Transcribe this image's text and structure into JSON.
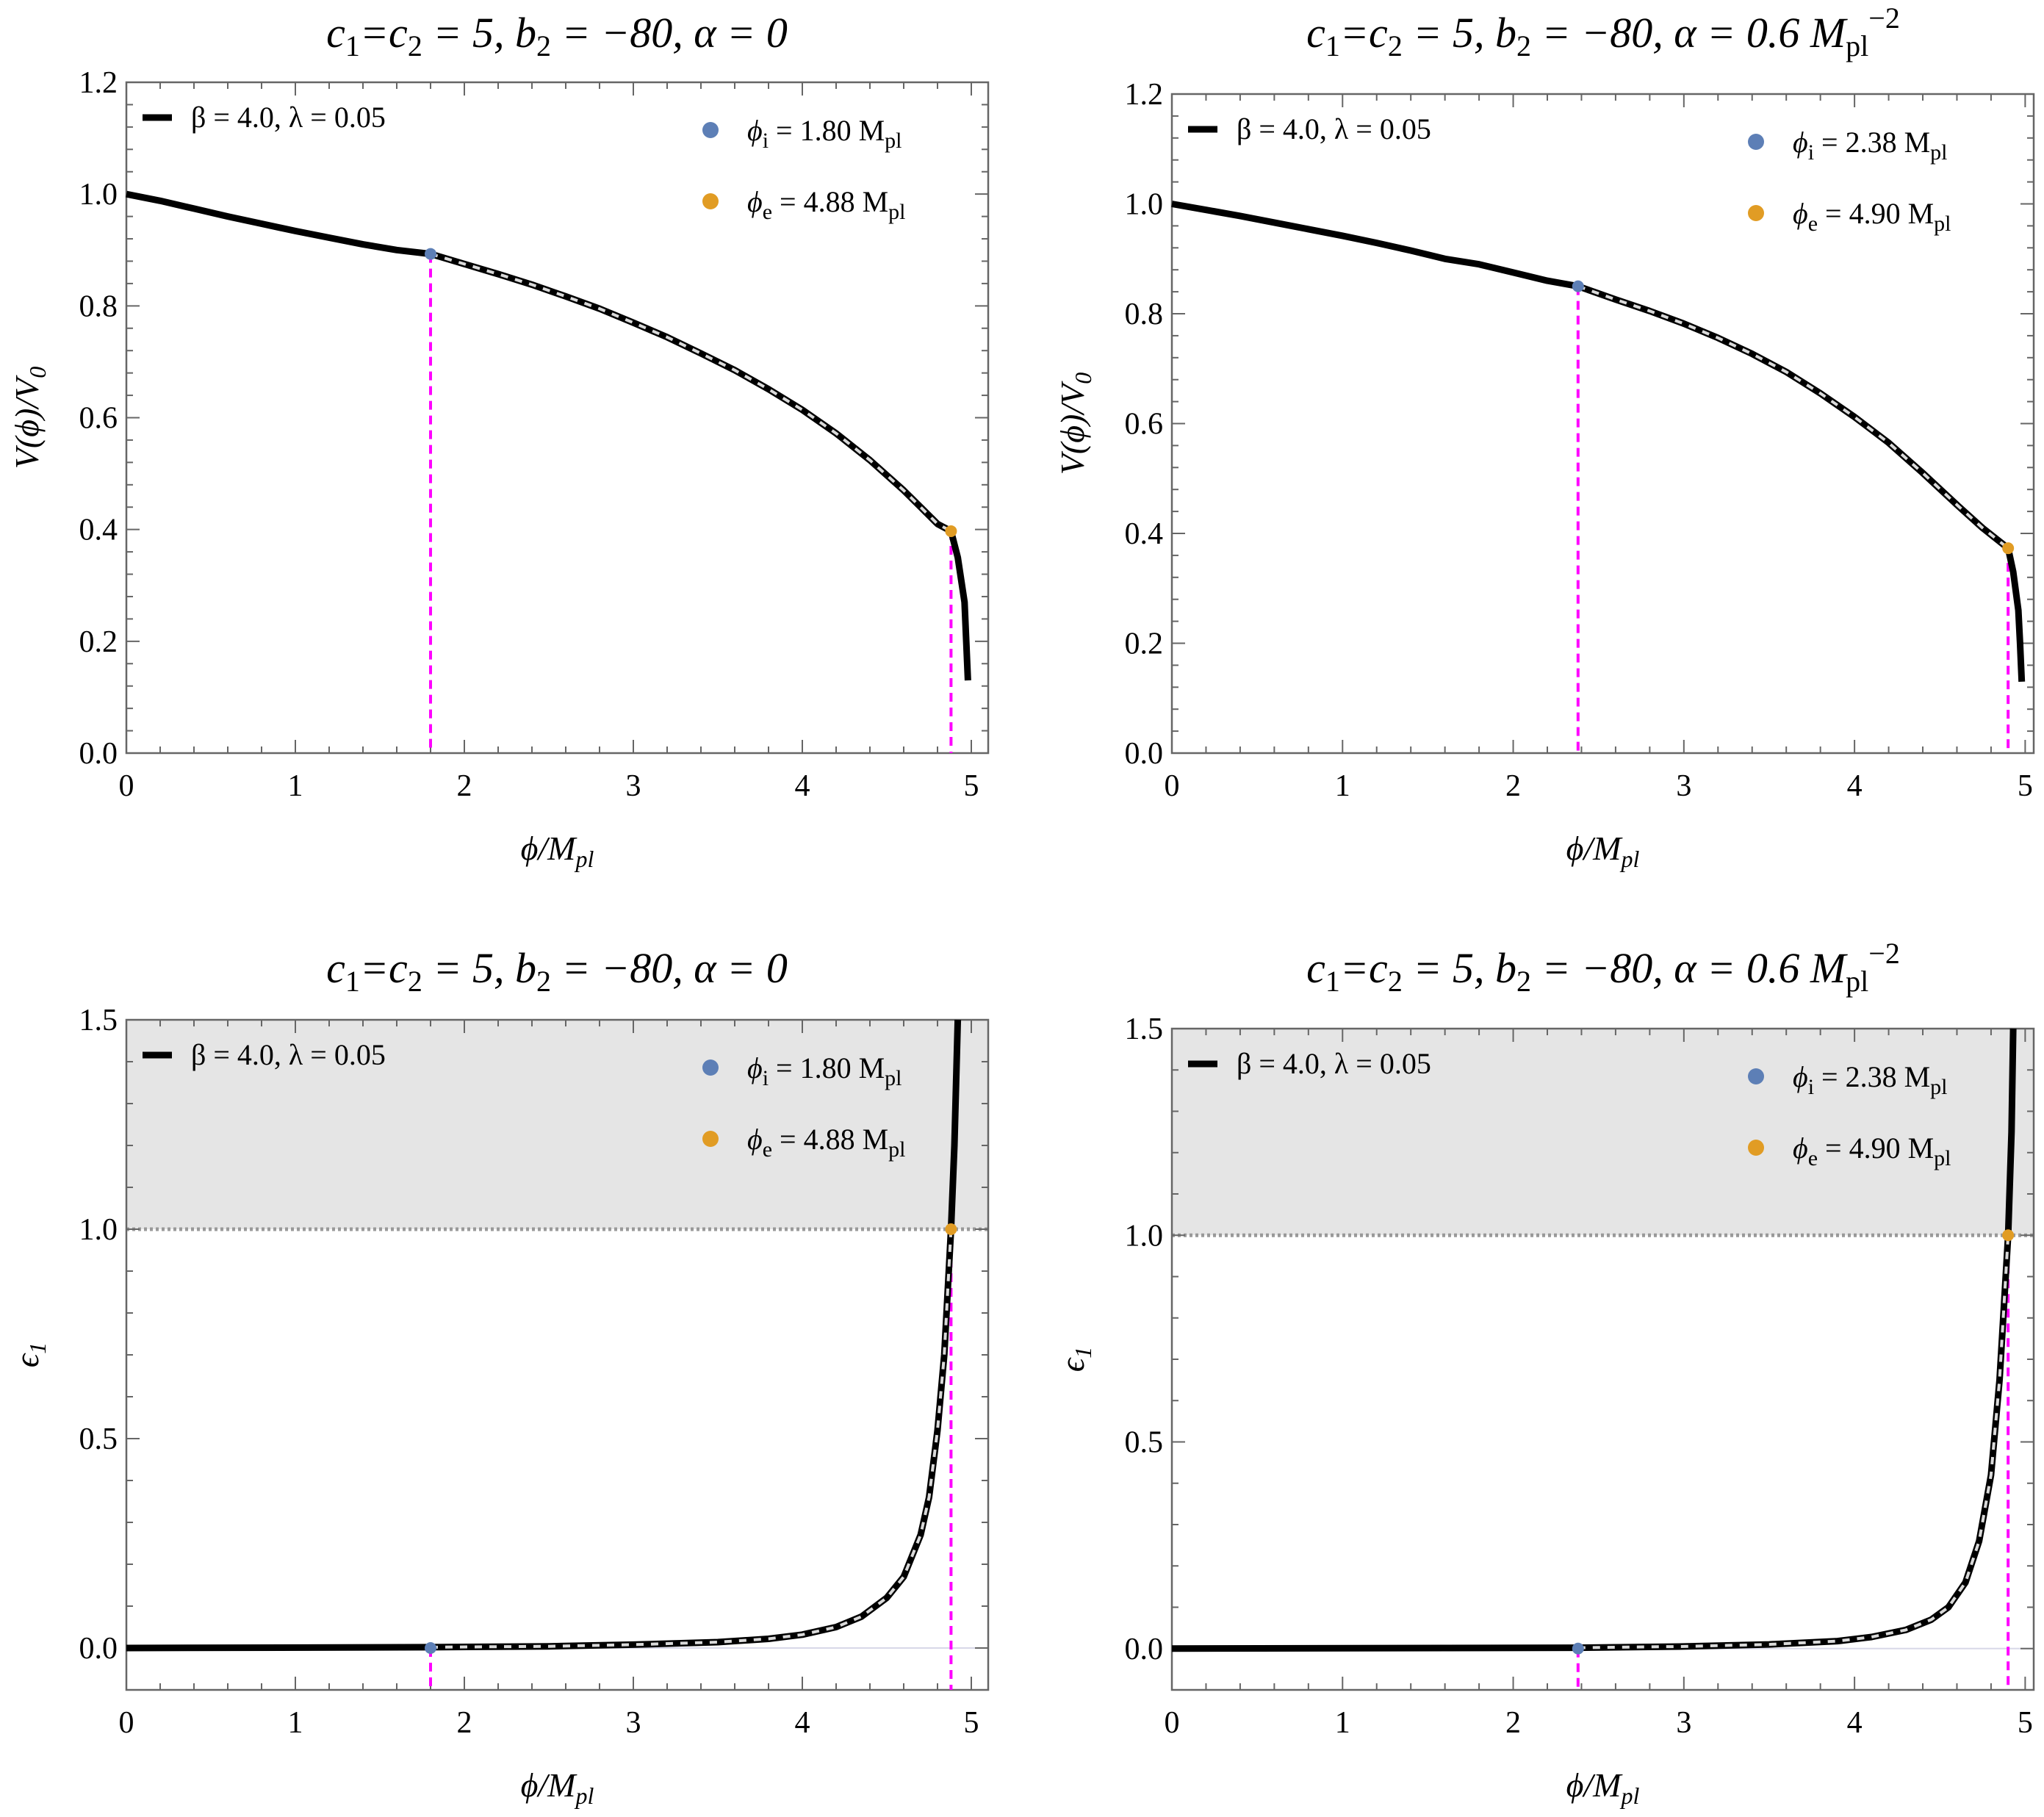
{
  "colors": {
    "curve": "#000000",
    "curve_inner": "#d9d9d9",
    "phi_i_marker": "#5d7fb6",
    "phi_e_marker": "#e19c24",
    "guide_line": "#ff00ff",
    "shade": "#e5e5e5",
    "threshold_line": "#999999",
    "frame": "#666666"
  },
  "chart_data": [
    {
      "type": "line",
      "title": {
        "t1": "c",
        "s1": "1",
        "t2": "=c",
        "s2": "2",
        "t3": " = 5, b",
        "s3": "2",
        "t4": " = −80, α = 0",
        "tail": "",
        "sup": ""
      },
      "xlabel": "ϕ/M",
      "xlabel_sub": "pl",
      "ylabel": "V(ϕ)/V",
      "ylabel_sub": "0",
      "xlim": [
        0,
        5.1
      ],
      "ylim": [
        0,
        1.2
      ],
      "xticks": [
        0,
        1,
        2,
        3,
        4,
        5
      ],
      "yticks": [
        0.0,
        0.2,
        0.4,
        0.6,
        0.8,
        1.0,
        1.2
      ],
      "ytick_labels": [
        "0.0",
        "0.2",
        "0.4",
        "0.6",
        "0.8",
        "1.0",
        "1.2"
      ],
      "legend": {
        "label": "β = 4.0, λ = 0.05"
      },
      "phi_i": {
        "x": 1.8,
        "y": 0.893,
        "sym": "ϕ",
        "sub": "i",
        "text": " = 1.80 M",
        "unit_sub": "pl"
      },
      "phi_e": {
        "x": 4.88,
        "y": 0.397,
        "sym": "ϕ",
        "sub": "e",
        "text": " = 4.88 M",
        "unit_sub": "pl"
      },
      "series": [
        {
          "name": "β = 4.0, λ = 0.05",
          "points": [
            [
              0,
              1.0
            ],
            [
              0.2,
              0.988
            ],
            [
              0.4,
              0.974
            ],
            [
              0.6,
              0.96
            ],
            [
              0.8,
              0.947
            ],
            [
              1.0,
              0.934
            ],
            [
              1.2,
              0.922
            ],
            [
              1.4,
              0.91
            ],
            [
              1.6,
              0.9
            ],
            [
              1.8,
              0.893
            ],
            [
              2.0,
              0.875
            ],
            [
              2.2,
              0.857
            ],
            [
              2.4,
              0.838
            ],
            [
              2.6,
              0.817
            ],
            [
              2.8,
              0.795
            ],
            [
              3.0,
              0.77
            ],
            [
              3.2,
              0.744
            ],
            [
              3.4,
              0.715
            ],
            [
              3.6,
              0.685
            ],
            [
              3.8,
              0.651
            ],
            [
              4.0,
              0.614
            ],
            [
              4.2,
              0.572
            ],
            [
              4.4,
              0.524
            ],
            [
              4.6,
              0.47
            ],
            [
              4.7,
              0.44
            ],
            [
              4.8,
              0.41
            ],
            [
              4.88,
              0.397
            ],
            [
              4.92,
              0.35
            ],
            [
              4.96,
              0.27
            ],
            [
              4.97,
              0.2
            ],
            [
              4.98,
              0.13
            ]
          ]
        }
      ]
    },
    {
      "type": "line",
      "title": {
        "t1": "c",
        "s1": "1",
        "t2": "=c",
        "s2": "2",
        "t3": " = 5, b",
        "s3": "2",
        "t4": " = −80, α = 0.6 M",
        "tail": "pl",
        "sup": "−2"
      },
      "xlabel": "ϕ/M",
      "xlabel_sub": "pl",
      "ylabel": "V(ϕ)/V",
      "ylabel_sub": "0",
      "xlim": [
        0,
        5.05
      ],
      "ylim": [
        0,
        1.2
      ],
      "xticks": [
        0,
        1,
        2,
        3,
        4,
        5
      ],
      "yticks": [
        0.0,
        0.2,
        0.4,
        0.6,
        0.8,
        1.0,
        1.2
      ],
      "ytick_labels": [
        "0.0",
        "0.2",
        "0.4",
        "0.6",
        "0.8",
        "1.0",
        "1.2"
      ],
      "legend": {
        "label": "β = 4.0, λ = 0.05"
      },
      "phi_i": {
        "x": 2.38,
        "y": 0.85,
        "sym": "ϕ",
        "sub": "i",
        "text": " = 2.38 M",
        "unit_sub": "pl"
      },
      "phi_e": {
        "x": 4.9,
        "y": 0.373,
        "sym": "ϕ",
        "sub": "e",
        "text": " = 4.90 M",
        "unit_sub": "pl"
      },
      "series": [
        {
          "name": "β = 4.0, λ = 0.05",
          "points": [
            [
              0,
              1.0
            ],
            [
              0.2,
              0.989
            ],
            [
              0.4,
              0.978
            ],
            [
              0.6,
              0.966
            ],
            [
              0.8,
              0.954
            ],
            [
              1.0,
              0.942
            ],
            [
              1.2,
              0.929
            ],
            [
              1.4,
              0.915
            ],
            [
              1.6,
              0.9
            ],
            [
              1.8,
              0.89
            ],
            [
              2.0,
              0.875
            ],
            [
              2.2,
              0.86
            ],
            [
              2.38,
              0.85
            ],
            [
              2.6,
              0.826
            ],
            [
              2.8,
              0.805
            ],
            [
              3.0,
              0.782
            ],
            [
              3.2,
              0.756
            ],
            [
              3.4,
              0.727
            ],
            [
              3.6,
              0.694
            ],
            [
              3.8,
              0.655
            ],
            [
              4.0,
              0.612
            ],
            [
              4.2,
              0.565
            ],
            [
              4.4,
              0.51
            ],
            [
              4.6,
              0.452
            ],
            [
              4.75,
              0.41
            ],
            [
              4.9,
              0.373
            ],
            [
              4.93,
              0.33
            ],
            [
              4.96,
              0.26
            ],
            [
              4.97,
              0.2
            ],
            [
              4.98,
              0.13
            ]
          ]
        }
      ]
    },
    {
      "type": "line",
      "title": {
        "t1": "c",
        "s1": "1",
        "t2": "=c",
        "s2": "2",
        "t3": " = 5, b",
        "s3": "2",
        "t4": " = −80, α = 0",
        "tail": "",
        "sup": ""
      },
      "xlabel": "ϕ/M",
      "xlabel_sub": "pl",
      "ylabel": "ϵ",
      "ylabel_sub": "1",
      "xlim": [
        0,
        5.1
      ],
      "ylim": [
        -0.1,
        1.5
      ],
      "xticks": [
        0,
        1,
        2,
        3,
        4,
        5
      ],
      "yticks": [
        0.0,
        0.5,
        1.0,
        1.5
      ],
      "ytick_labels": [
        "0.0",
        "0.5",
        "1.0",
        "1.5"
      ],
      "shade_above": 1.0,
      "legend": {
        "label": "β = 4.0, λ = 0.05"
      },
      "phi_i": {
        "x": 1.8,
        "y": 0.0,
        "sym": "ϕ",
        "sub": "i",
        "text": " = 1.80 M",
        "unit_sub": "pl"
      },
      "phi_e": {
        "x": 4.88,
        "y": 1.0,
        "sym": "ϕ",
        "sub": "e",
        "text": " = 4.88 M",
        "unit_sub": "pl"
      },
      "series": [
        {
          "name": "β = 4.0, λ = 0.05",
          "points": [
            [
              0,
              0
            ],
            [
              1.8,
              0.002
            ],
            [
              2.5,
              0.004
            ],
            [
              3.0,
              0.008
            ],
            [
              3.5,
              0.014
            ],
            [
              3.8,
              0.022
            ],
            [
              4.0,
              0.032
            ],
            [
              4.2,
              0.05
            ],
            [
              4.35,
              0.075
            ],
            [
              4.5,
              0.12
            ],
            [
              4.6,
              0.17
            ],
            [
              4.7,
              0.27
            ],
            [
              4.75,
              0.36
            ],
            [
              4.8,
              0.52
            ],
            [
              4.84,
              0.7
            ],
            [
              4.88,
              1.0
            ],
            [
              4.9,
              1.2
            ],
            [
              4.91,
              1.35
            ],
            [
              4.92,
              1.5
            ]
          ]
        }
      ]
    },
    {
      "type": "line",
      "title": {
        "t1": "c",
        "s1": "1",
        "t2": "=c",
        "s2": "2",
        "t3": " = 5, b",
        "s3": "2",
        "t4": " = −80, α = 0.6 M",
        "tail": "pl",
        "sup": "−2"
      },
      "xlabel": "ϕ/M",
      "xlabel_sub": "pl",
      "ylabel": "ϵ",
      "ylabel_sub": "1",
      "xlim": [
        0,
        5.05
      ],
      "ylim": [
        -0.1,
        1.5
      ],
      "xticks": [
        0,
        1,
        2,
        3,
        4,
        5
      ],
      "yticks": [
        0.0,
        0.5,
        1.0,
        1.5
      ],
      "ytick_labels": [
        "0.0",
        "0.5",
        "1.0",
        "1.5"
      ],
      "shade_above": 1.0,
      "legend": {
        "label": "β = 4.0, λ = 0.05"
      },
      "phi_i": {
        "x": 2.38,
        "y": 0.0,
        "sym": "ϕ",
        "sub": "i",
        "text": " = 2.38 M",
        "unit_sub": "pl"
      },
      "phi_e": {
        "x": 4.9,
        "y": 1.0,
        "sym": "ϕ",
        "sub": "e",
        "text": " = 4.90 M",
        "unit_sub": "pl"
      },
      "series": [
        {
          "name": "β = 4.0, λ = 0.05",
          "points": [
            [
              0,
              0
            ],
            [
              2.38,
              0.002
            ],
            [
              3.0,
              0.005
            ],
            [
              3.5,
              0.01
            ],
            [
              3.9,
              0.018
            ],
            [
              4.1,
              0.028
            ],
            [
              4.3,
              0.045
            ],
            [
              4.45,
              0.07
            ],
            [
              4.55,
              0.1
            ],
            [
              4.65,
              0.16
            ],
            [
              4.73,
              0.26
            ],
            [
              4.8,
              0.42
            ],
            [
              4.85,
              0.65
            ],
            [
              4.9,
              1.0
            ],
            [
              4.92,
              1.25
            ],
            [
              4.93,
              1.5
            ]
          ]
        }
      ]
    }
  ]
}
